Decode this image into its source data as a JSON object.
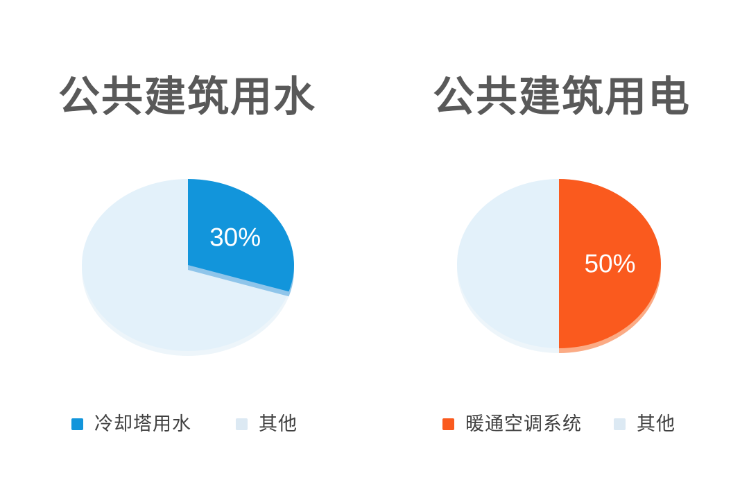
{
  "page": {
    "background": "#ffffff"
  },
  "text_colors": {
    "title": "#595959",
    "legend": "#404040"
  },
  "chart_data": [
    {
      "type": "pie",
      "title": "公共建筑用水",
      "labels": [
        "冷却塔用水",
        "其他"
      ],
      "values": [
        30,
        70
      ],
      "unit": "%",
      "data_label": "30%",
      "legend_position": "bottom",
      "style": "3d-tilted",
      "colors": {
        "main": "#1295DB",
        "main_depth": "#8FC5EA",
        "base": "#E3F1FA",
        "base_depth": "#EDF5FA",
        "legend_main": "#1295DB",
        "legend_base": "#DCE9F3",
        "label_text": "#FFFFFF"
      }
    },
    {
      "type": "pie",
      "title": "公共建筑用电",
      "labels": [
        "暖通空调系统",
        "其他"
      ],
      "values": [
        50,
        50
      ],
      "unit": "%",
      "data_label": "50%",
      "legend_position": "bottom",
      "style": "3d-tilted",
      "colors": {
        "main": "#FA5A1E",
        "main_depth": "#FBAB85",
        "base": "#E3F1FA",
        "base_depth": "#EDF5FA",
        "legend_main": "#FA5A1E",
        "legend_base": "#DCE9F3",
        "label_text": "#FFFFFF"
      }
    }
  ]
}
